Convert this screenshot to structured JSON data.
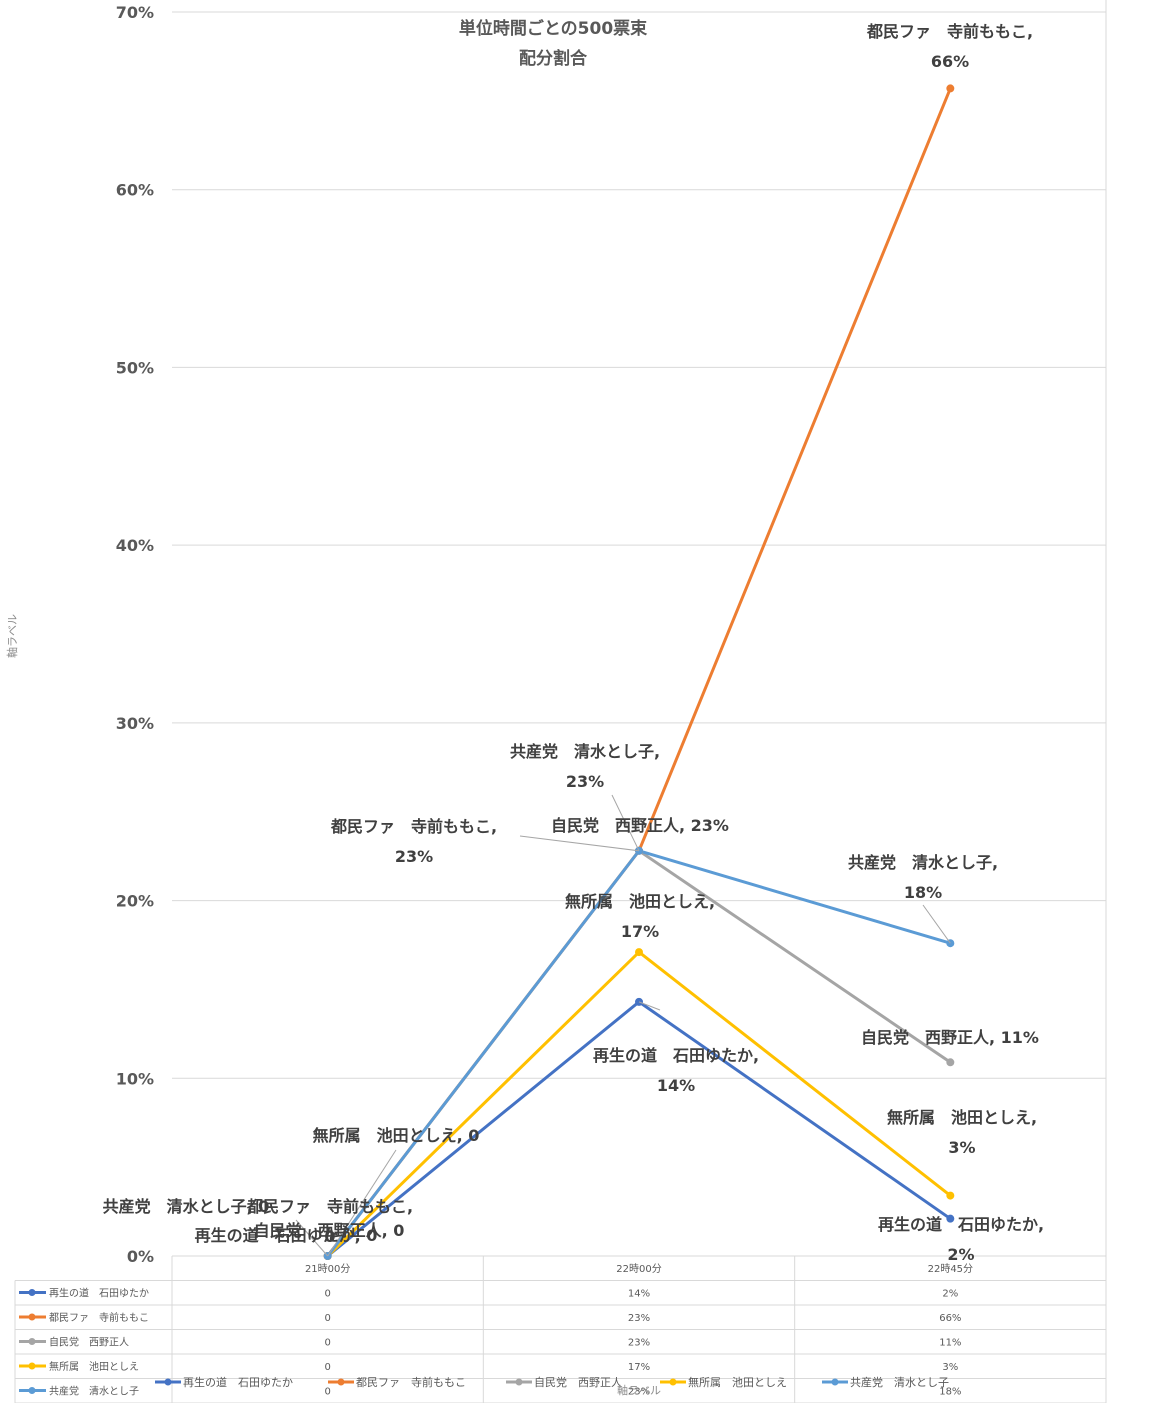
{
  "chart_data": {
    "type": "line",
    "title": "単位時間ごとの500票束\n配分割合",
    "xlabel": "軸ラベル",
    "ylabel": "軸ラベル",
    "categories": [
      "21時00分",
      "22時00分",
      "22時45分"
    ],
    "ylim": [
      0,
      0.7
    ],
    "yticks": [
      "0%",
      "10%",
      "20%",
      "30%",
      "40%",
      "50%",
      "60%",
      "70%"
    ],
    "grid": true,
    "legend_position": "bottom",
    "series": [
      {
        "name": "再生の道　石田ゆたか",
        "color": "#4472C4",
        "values": [
          0,
          0.143,
          0.021
        ],
        "table_values": [
          "0",
          "14%",
          "2%"
        ],
        "labels": [
          "再生の道　石田ゆたか, 0",
          "再生の道　石田ゆたか,\n14%",
          "再生の道　石田ゆたか,\n2%"
        ]
      },
      {
        "name": "都民ファ　寺前ももこ",
        "color": "#ED7D31",
        "values": [
          0,
          0.228,
          0.657
        ],
        "table_values": [
          "0",
          "23%",
          "66%"
        ],
        "labels": [
          "都民ファ　寺前ももこ,\n0",
          "都民ファ　寺前ももこ,\n23%",
          "都民ファ　寺前ももこ,\n66%"
        ]
      },
      {
        "name": "自民党　西野正人",
        "color": "#A5A5A5",
        "values": [
          0,
          0.228,
          0.109
        ],
        "table_values": [
          "0",
          "23%",
          "11%"
        ],
        "labels": [
          "自民党　西野正人, 0",
          "自民党　西野正人, 23%",
          "自民党　西野正人, 11%"
        ]
      },
      {
        "name": "無所属　池田としえ",
        "color": "#FFC000",
        "values": [
          0,
          0.171,
          0.034
        ],
        "table_values": [
          "0",
          "17%",
          "3%"
        ],
        "labels": [
          "無所属　池田としえ, 0",
          "無所属　池田としえ,\n17%",
          "無所属　池田としえ,\n3%"
        ]
      },
      {
        "name": "共産党　清水とし子",
        "color": "#5B9BD5",
        "values": [
          0,
          0.228,
          0.176
        ],
        "table_values": [
          "0",
          "23%",
          "18%"
        ],
        "labels": [
          "共産党　清水とし子, 0",
          "共産党　清水とし子,\n23%",
          "共産党　清水とし子,\n18%"
        ]
      }
    ]
  }
}
